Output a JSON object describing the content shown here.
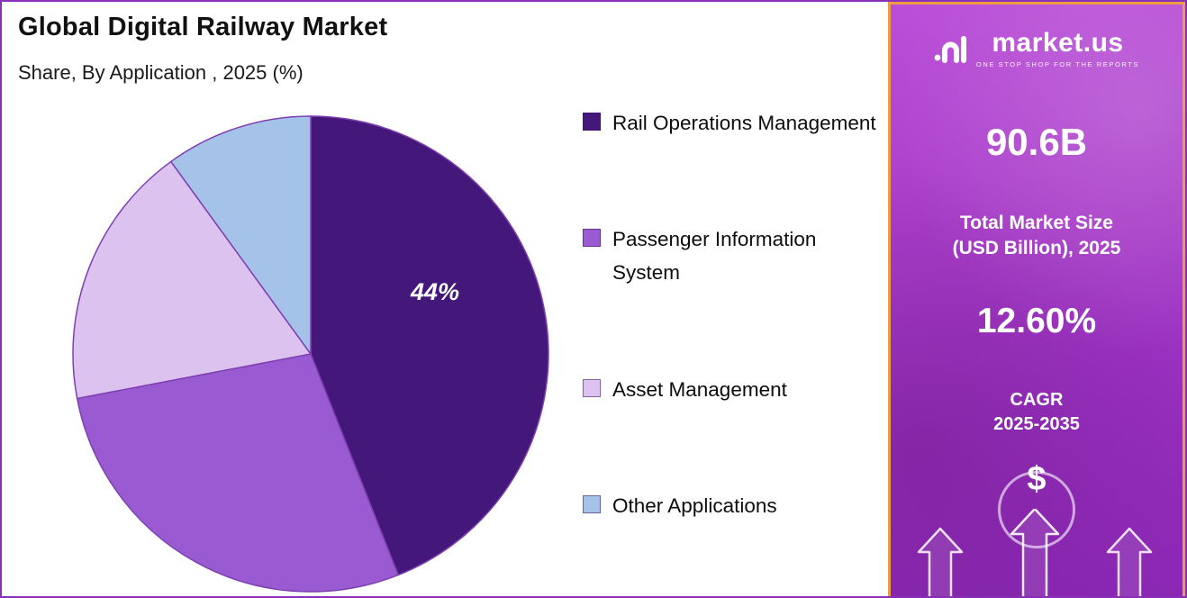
{
  "header": {
    "title": "Global Digital Railway Market",
    "subtitle": "Share, By Application , 2025 (%)"
  },
  "chart_data": {
    "type": "pie",
    "title": "Global Digital Railway Market Share, By Application, 2025 (%)",
    "categories": [
      "Rail Operations Management",
      "Passenger Information System",
      "Asset Management",
      "Other Applications"
    ],
    "values": [
      44,
      28,
      18,
      10
    ],
    "colors": [
      "#44187A",
      "#9A5AD1",
      "#DCC3EF",
      "#A5C3E9"
    ],
    "stroke_color": "#7E3FB0",
    "data_label": "44%",
    "labeled_slice_index": 0,
    "start_angle_deg": 0,
    "legend_position": "right"
  },
  "sidebar": {
    "logo_text": "market.us",
    "logo_tagline": "ONE STOP SHOP FOR THE REPORTS",
    "market_size_value": "90.6B",
    "market_size_label_line1": "Total Market Size",
    "market_size_label_line2": "(USD Billion), 2025",
    "cagr_value": "12.60%",
    "cagr_line1": "CAGR",
    "cagr_line2": "2025-2035",
    "dollar_sign": "$",
    "accent_color": "#A93CC9",
    "border_color": "#ED9C3F"
  }
}
